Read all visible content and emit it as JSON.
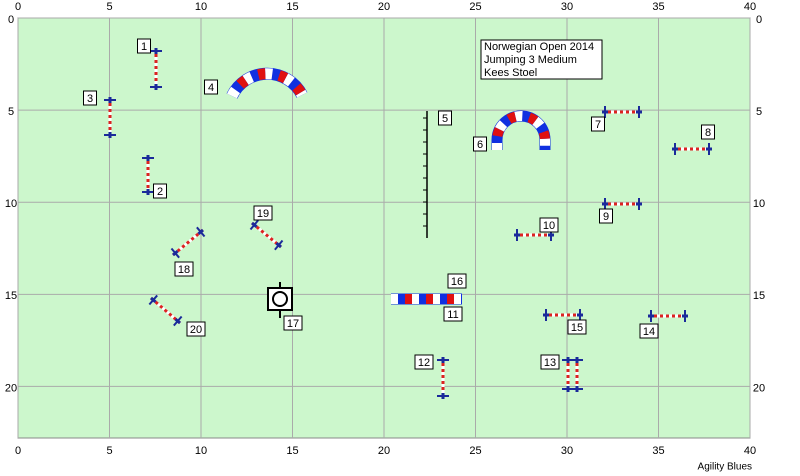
{
  "course": {
    "xlim": [
      0,
      40
    ],
    "ylim": [
      0,
      22.8
    ],
    "xticks": [
      0,
      5,
      10,
      15,
      20,
      25,
      30,
      35,
      40
    ],
    "yticks": [
      0,
      5,
      10,
      15,
      20
    ],
    "info": [
      "Norwegian Open 2014",
      "Jumping 3 Medium",
      "Kees Stoel"
    ],
    "obstacles": [
      "1",
      "2",
      "3",
      "4",
      "5",
      "6",
      "7",
      "8",
      "9",
      "10",
      "11",
      "12",
      "13",
      "14",
      "15",
      "16",
      "17",
      "18",
      "19",
      "20"
    ],
    "footer": "Agility Blues"
  }
}
